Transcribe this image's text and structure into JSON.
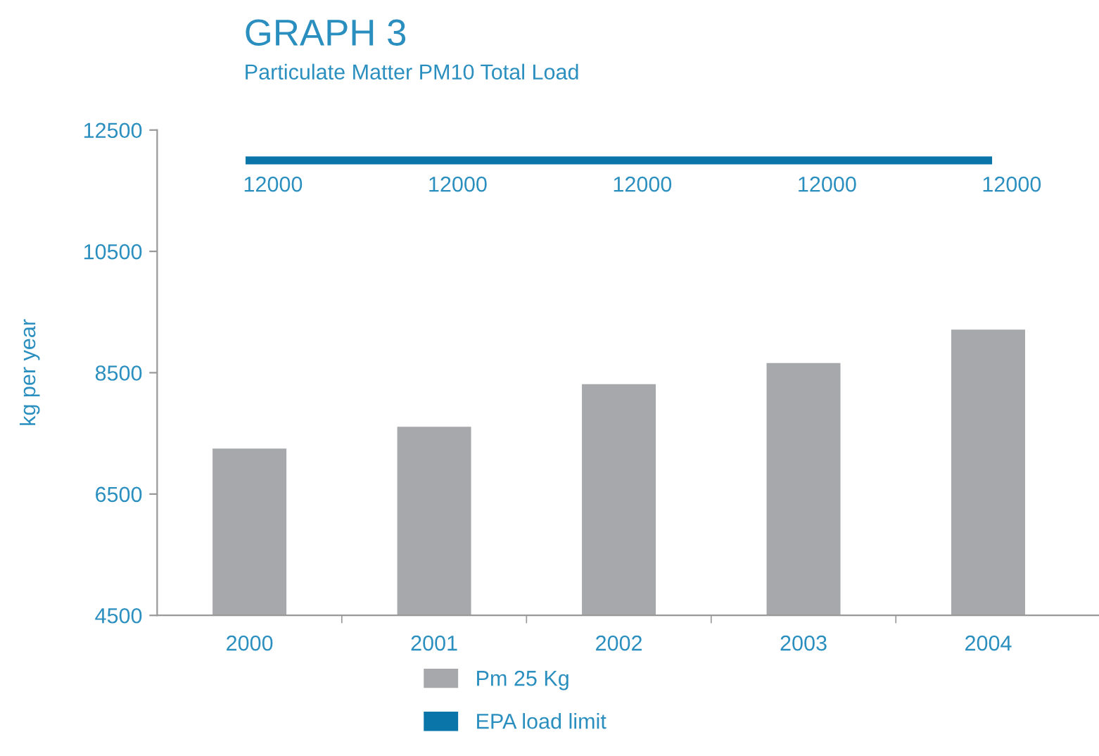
{
  "chart_data": {
    "type": "bar",
    "title": "GRAPH 3",
    "subtitle": "Particulate Matter PM10 Total Load",
    "ylabel": "kg per year",
    "categories": [
      "2000",
      "2001",
      "2002",
      "2003",
      "2004"
    ],
    "series": [
      {
        "name": "Pm 25 Kg",
        "color": "#a7a8ab",
        "values": [
          7250,
          7610,
          8310,
          8660,
          9210
        ]
      },
      {
        "name": "EPA load limit",
        "type": "line",
        "color": "#0a75a8",
        "values": [
          12000,
          12000,
          12000,
          12000,
          12000
        ],
        "value_labels": [
          "12000",
          "12000",
          "12000",
          "12000",
          "12000"
        ]
      }
    ],
    "ylim": [
      4500,
      12500
    ],
    "yticks": [
      4500,
      6500,
      8500,
      10500,
      12500
    ],
    "grid": false,
    "legend": "bottom",
    "marker": "none"
  }
}
